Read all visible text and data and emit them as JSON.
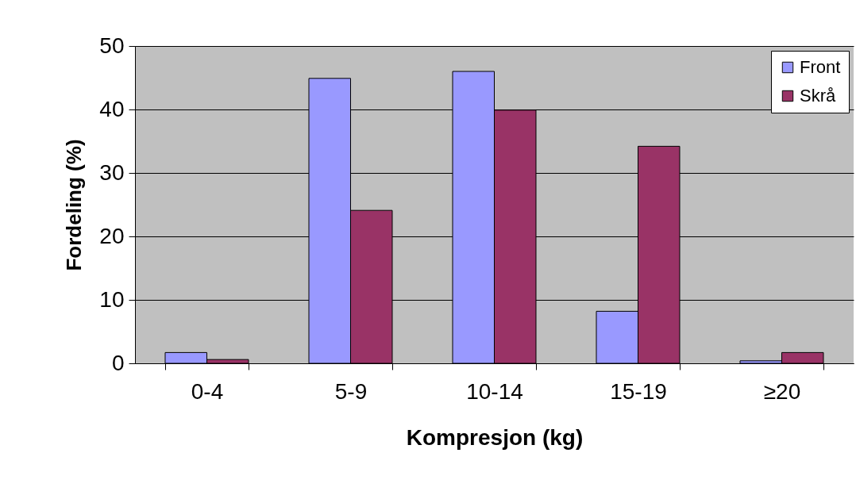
{
  "chart_data": {
    "type": "bar",
    "xlabel": "Kompresjon (kg)",
    "ylabel": "Fordeling (%)",
    "categories": [
      "0-4",
      "5-9",
      "10-14",
      "15-19",
      "≥20"
    ],
    "series": [
      {
        "name": "Front",
        "color": "#9999ff",
        "values": [
          1.7,
          44.9,
          46.0,
          8.2,
          0.4
        ]
      },
      {
        "name": "Skrå",
        "color": "#993366",
        "values": [
          0.6,
          24.1,
          39.9,
          34.2,
          1.7
        ]
      }
    ],
    "ylim": [
      0,
      50
    ],
    "yticks": [
      0,
      10,
      20,
      30,
      40,
      50
    ],
    "grid": "y",
    "legend": "top right"
  }
}
